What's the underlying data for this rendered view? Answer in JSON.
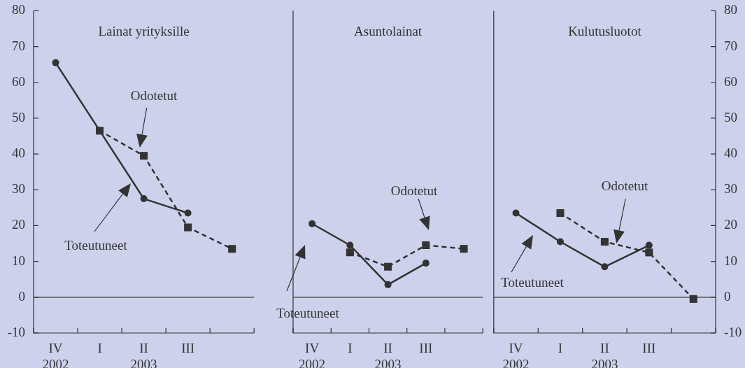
{
  "chart_data": [
    {
      "type": "line",
      "title": "Lainat yrityksille",
      "categories": [
        "IV\n2002",
        "I",
        "II\n2003",
        "III",
        null
      ],
      "ylim": [
        -10,
        80
      ],
      "yticks": [
        -10,
        0,
        10,
        20,
        30,
        40,
        50,
        60,
        70,
        80
      ],
      "ref_lines": [
        {
          "axis": "y",
          "value": 0
        }
      ],
      "annotations": [
        "Odotetut",
        "Toteutuneet"
      ],
      "series": [
        {
          "color": "#333333",
          "marker": "circle",
          "line_style": "solid",
          "values": [
            65.5,
            46.5,
            27.5,
            23.5,
            null
          ]
        },
        {
          "color": "#333333",
          "marker": "square",
          "line_style": "dashed",
          "values": [
            null,
            46.5,
            39.5,
            19.5,
            13.5
          ]
        }
      ]
    },
    {
      "type": "line",
      "title": "Asuntolainat",
      "categories": [
        "IV\n2002",
        "I",
        "II\n2003",
        "III",
        null
      ],
      "ylim": [
        -10,
        80
      ],
      "yticks": [
        -10,
        0,
        10,
        20,
        30,
        40,
        50,
        60,
        70,
        80
      ],
      "tick_labels": "x",
      "ref_lines": [
        {
          "axis": "y",
          "value": 0
        }
      ],
      "annotations": [
        "Odotetut",
        "Toteutuneet"
      ],
      "series": [
        {
          "color": "#333333",
          "marker": "circle",
          "line_style": "solid",
          "values": [
            20.5,
            14.5,
            3.5,
            9.5,
            null
          ]
        },
        {
          "color": "#333333",
          "marker": "square",
          "line_style": "dashed",
          "values": [
            null,
            12.5,
            8.5,
            14.5,
            13.5
          ]
        }
      ]
    },
    {
      "type": "line",
      "title": "Kulutusluotot",
      "categories": [
        "IV\n2002",
        "I",
        "II\n2003",
        "III",
        null
      ],
      "y2lim": [
        -10,
        80
      ],
      "y2ticks": [
        -10,
        0,
        10,
        20,
        30,
        40,
        50,
        60,
        70,
        80
      ],
      "ref_lines": [
        {
          "axis": "y2",
          "value": 0
        }
      ],
      "annotations": [
        "Odotetut",
        "Toteutuneet"
      ],
      "series": [
        {
          "color": "#333333",
          "marker": "circle",
          "line_style": "solid",
          "axis": "y2",
          "values": [
            23.5,
            15.5,
            8.5,
            14.5,
            null
          ]
        },
        {
          "color": "#333333",
          "marker": "square",
          "line_style": "dashed",
          "axis": "y2",
          "values": [
            null,
            23.5,
            15.5,
            12.5,
            -0.5
          ]
        }
      ]
    }
  ]
}
